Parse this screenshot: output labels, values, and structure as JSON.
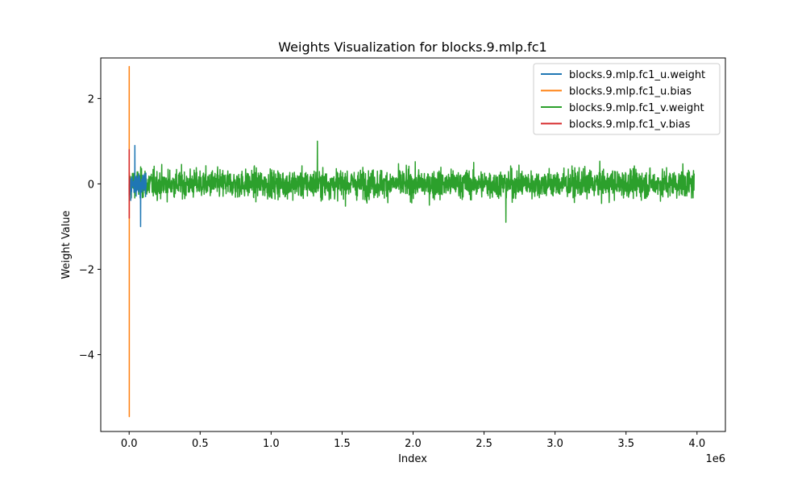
{
  "chart_data": {
    "type": "line",
    "title": "Weights Visualization for blocks.9.mlp.fc1",
    "xlabel": "Index",
    "ylabel": "Weight Value",
    "x_offset_label": "1e6",
    "xlim": [
      -0.2,
      4.2
    ],
    "ylim": [
      -5.8,
      2.95
    ],
    "x_unit_scale": 1000000,
    "xticks": [
      0.0,
      0.5,
      1.0,
      1.5,
      2.0,
      2.5,
      3.0,
      3.5,
      4.0
    ],
    "xtick_labels": [
      "0.0",
      "0.5",
      "1.0",
      "1.5",
      "2.0",
      "2.5",
      "3.0",
      "3.5",
      "4.0"
    ],
    "yticks": [
      2,
      0,
      -2,
      -4
    ],
    "ytick_labels": [
      "2",
      "0",
      "−2",
      "−4"
    ],
    "grid": false,
    "legend_position": "top-right",
    "series": [
      {
        "name": "blocks.9.mlp.fc1_u.weight",
        "color": "#1f77b4",
        "x_range": [
          0,
          0.12
        ],
        "typical_amplitude": 0.3,
        "min": -1.0,
        "max": 0.9
      },
      {
        "name": "blocks.9.mlp.fc1_u.bias",
        "color": "#ff7f0e",
        "x_range": [
          0,
          0.0015
        ],
        "typical_amplitude": 0.5,
        "min": -5.45,
        "max": 2.75
      },
      {
        "name": "blocks.9.mlp.fc1_v.weight",
        "color": "#2ca02c",
        "x_range": [
          0,
          3.98
        ],
        "typical_amplitude": 0.35,
        "min": -0.9,
        "max": 1.0
      },
      {
        "name": "blocks.9.mlp.fc1_v.bias",
        "color": "#d62728",
        "x_range": [
          0,
          0.001
        ],
        "typical_amplitude": 0.4,
        "min": -0.8,
        "max": 0.8
      }
    ]
  }
}
